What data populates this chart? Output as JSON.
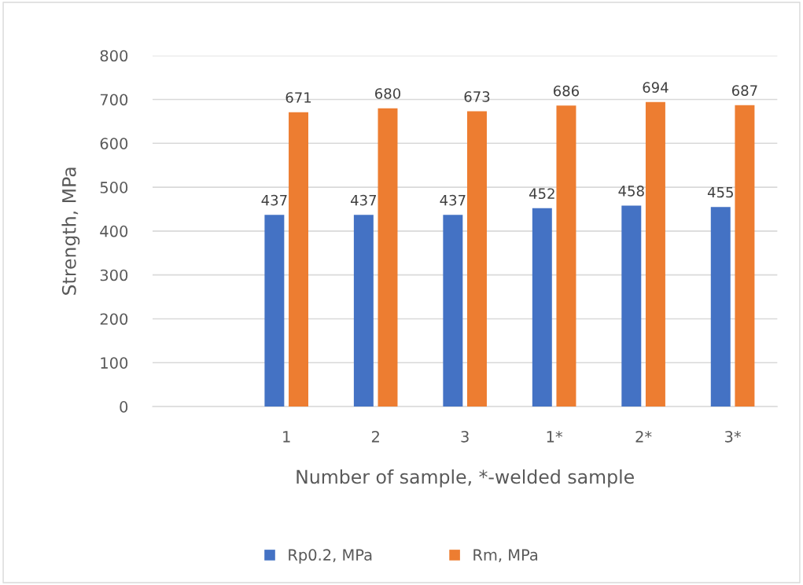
{
  "chart_data": {
    "type": "bar",
    "xlabel": "Number of sample, *-welded sample",
    "ylabel": "Strength, MPa",
    "categories": [
      null,
      "1",
      "2",
      "3",
      "1*",
      "2*",
      "3*"
    ],
    "series": [
      {
        "name": "Rp0.2, MPa",
        "color": "#4472c4",
        "values": [
          null,
          437,
          437,
          437,
          452,
          458,
          455
        ]
      },
      {
        "name": "Rm, MPa",
        "color": "#ed7d31",
        "values": [
          null,
          671,
          680,
          673,
          686,
          694,
          687
        ]
      }
    ],
    "ylim": [
      0,
      800
    ],
    "yticks": [
      0,
      100,
      200,
      300,
      400,
      500,
      600,
      700,
      800
    ],
    "grid": "y",
    "legend": "bottom",
    "data_labels": true
  }
}
